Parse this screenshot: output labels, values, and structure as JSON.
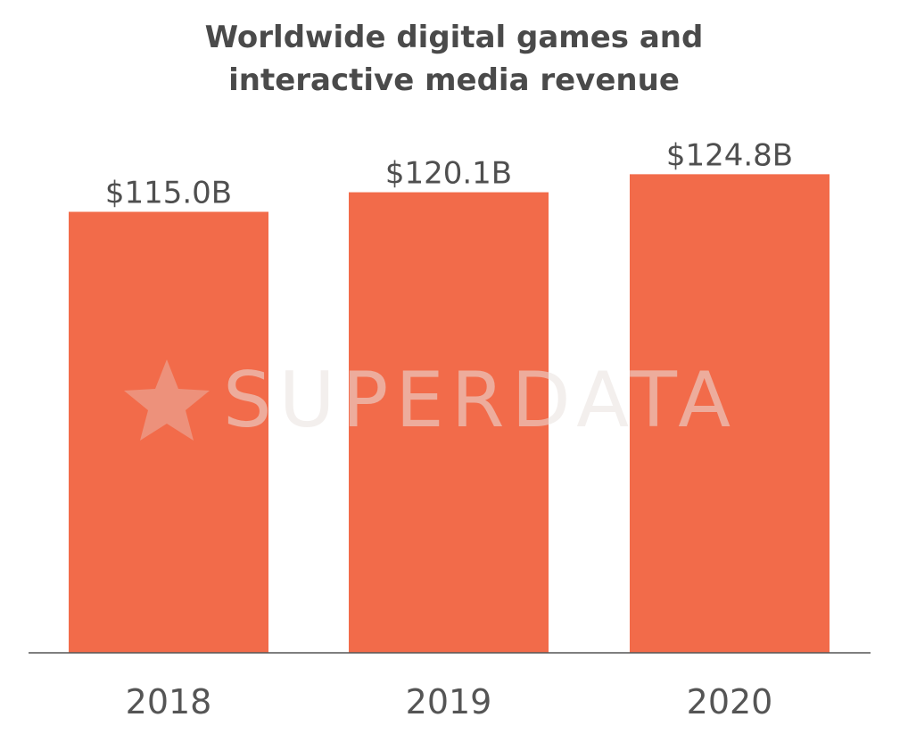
{
  "chart_data": {
    "type": "bar",
    "title_lines": [
      "Worldwide digital games and",
      "interactive media revenue"
    ],
    "categories": [
      "2018",
      "2019",
      "2020"
    ],
    "values": [
      115.0,
      120.1,
      124.8
    ],
    "value_labels": [
      "$115.0B",
      "$120.1B",
      "$124.8B"
    ],
    "bar_color": "#f26b4a",
    "axis_color": "#555555",
    "grid": false,
    "ylim": [
      0,
      130
    ]
  },
  "watermark": {
    "text": "SUPERDATA",
    "icon": "star-icon"
  }
}
